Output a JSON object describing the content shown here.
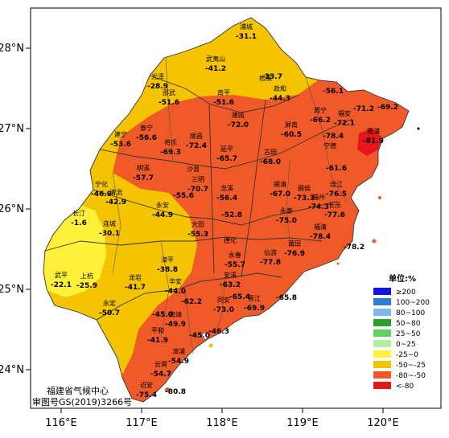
{
  "axes": {
    "lon_labels": [
      "116°E",
      "117°E",
      "118°E",
      "119°E",
      "120°E"
    ],
    "lat_labels": [
      "28°N",
      "27°N",
      "26°N",
      "25°N",
      "24°N"
    ]
  },
  "legend": {
    "title": "单位:%",
    "items": [
      {
        "label": "≥200",
        "color": "#1414e6"
      },
      {
        "label": "100~200",
        "color": "#2a7fd6"
      },
      {
        "label": "80~100",
        "color": "#7fb6ea"
      },
      {
        "label": "50~80",
        "color": "#2ca02c"
      },
      {
        "label": "25~50",
        "color": "#5fd15f"
      },
      {
        "label": "0~25",
        "color": "#b6eea0"
      },
      {
        "label": "-25~0",
        "color": "#fff03a"
      },
      {
        "label": "-50~-25",
        "color": "#f5c400"
      },
      {
        "label": "-80~-50",
        "color": "#f05a28"
      },
      {
        "label": "<-80",
        "color": "#e8141e"
      }
    ]
  },
  "credit": {
    "line1": "福建省气候中心",
    "line2": "审图号GS(2019)3266号"
  },
  "stations": [
    {
      "name": "浦城",
      "value": "-31.1"
    },
    {
      "name": "武夷山",
      "value": "-41.2"
    },
    {
      "name": "光泽",
      "value": "-28.9"
    },
    {
      "name": "",
      "value": "-33.7"
    },
    {
      "name": "松溪",
      "value": ""
    },
    {
      "name": "政和",
      "value": "-44.3"
    },
    {
      "name": "邵武",
      "value": "-51.6"
    },
    {
      "name": "南平",
      "value": "-51.6"
    },
    {
      "name": "建瓯",
      "value": "-72.0"
    },
    {
      "name": "",
      "value": "-56.1"
    },
    {
      "name": "周宁",
      "value": "-66.2"
    },
    {
      "name": "福安",
      "value": "-72.1"
    },
    {
      "name": "",
      "value": "-71.2"
    },
    {
      "name": "",
      "value": "-69.2"
    },
    {
      "name": "泰宁",
      "value": "-56.6"
    },
    {
      "name": "建宁",
      "value": "-53.6"
    },
    {
      "name": "将乐",
      "value": "-69.3"
    },
    {
      "name": "顺昌",
      "value": "-72.4"
    },
    {
      "name": "屏南",
      "value": "-60.5"
    },
    {
      "name": "",
      "value": "-78.4"
    },
    {
      "name": "霞浦",
      "value": "-81.9"
    },
    {
      "name": "延平",
      "value": "-65.7"
    },
    {
      "name": "古田",
      "value": "-68.0"
    },
    {
      "name": "宁德",
      "value": ""
    },
    {
      "name": "",
      "value": "-61.6"
    },
    {
      "name": "明溪",
      "value": "-57.7"
    },
    {
      "name": "沙县",
      "value": ""
    },
    {
      "name": "三明",
      "value": "-70.7"
    },
    {
      "name": "",
      "value": "-55.6"
    },
    {
      "name": "宁化",
      "value": "-46.9"
    },
    {
      "name": "清流",
      "value": "-42.9"
    },
    {
      "name": "龙溪",
      "value": "-56.4"
    },
    {
      "name": "闽清",
      "value": "-67.0"
    },
    {
      "name": "闽侯",
      "value": "-73.3"
    },
    {
      "name": "连江",
      "value": "-76.5"
    },
    {
      "name": "福州",
      "value": "-74.3"
    },
    {
      "name": "长乐",
      "value": "-77.6"
    },
    {
      "name": "永安",
      "value": "-44.9"
    },
    {
      "name": "永泰",
      "value": "-75.0"
    },
    {
      "name": "长汀",
      "value": "-1.6"
    },
    {
      "name": "连城",
      "value": "-30.1"
    },
    {
      "name": "大田",
      "value": "-55.3"
    },
    {
      "name": "",
      "value": "-52.8"
    },
    {
      "name": "德化",
      "value": ""
    },
    {
      "name": "福清",
      "value": "-78.4"
    },
    {
      "name": "",
      "value": "-78.2"
    },
    {
      "name": "永春",
      "value": "-55.7"
    },
    {
      "name": "仙游",
      "value": "-77.8"
    },
    {
      "name": "莆田",
      "value": "-76.9"
    },
    {
      "name": "漳平",
      "value": "-38.8"
    },
    {
      "name": "武平",
      "value": "-22.1"
    },
    {
      "name": "上杭",
      "value": "-25.9"
    },
    {
      "name": "龙岩",
      "value": "-41.7"
    },
    {
      "name": "安溪",
      "value": "-63.2"
    },
    {
      "name": "",
      "value": "-65.4"
    },
    {
      "name": "",
      "value": "-65.8"
    },
    {
      "name": "华安",
      "value": "-44.0"
    },
    {
      "name": "永定",
      "value": "-50.7"
    },
    {
      "name": "",
      "value": "-62.2"
    },
    {
      "name": "同安",
      "value": "-73.0"
    },
    {
      "name": "晋江",
      "value": "-69.9"
    },
    {
      "name": "",
      "value": "-45.0"
    },
    {
      "name": "南靖",
      "value": "-49.9"
    },
    {
      "name": "平和",
      "value": "-41.9"
    },
    {
      "name": "",
      "value": "-45.0"
    },
    {
      "name": "",
      "value": "-46.3"
    },
    {
      "name": "漳浦",
      "value": "-54.9"
    },
    {
      "name": "云霄",
      "value": "-54.7"
    },
    {
      "name": "诏安",
      "value": "-75.4"
    },
    {
      "name": "",
      "value": "-80.8"
    }
  ]
}
